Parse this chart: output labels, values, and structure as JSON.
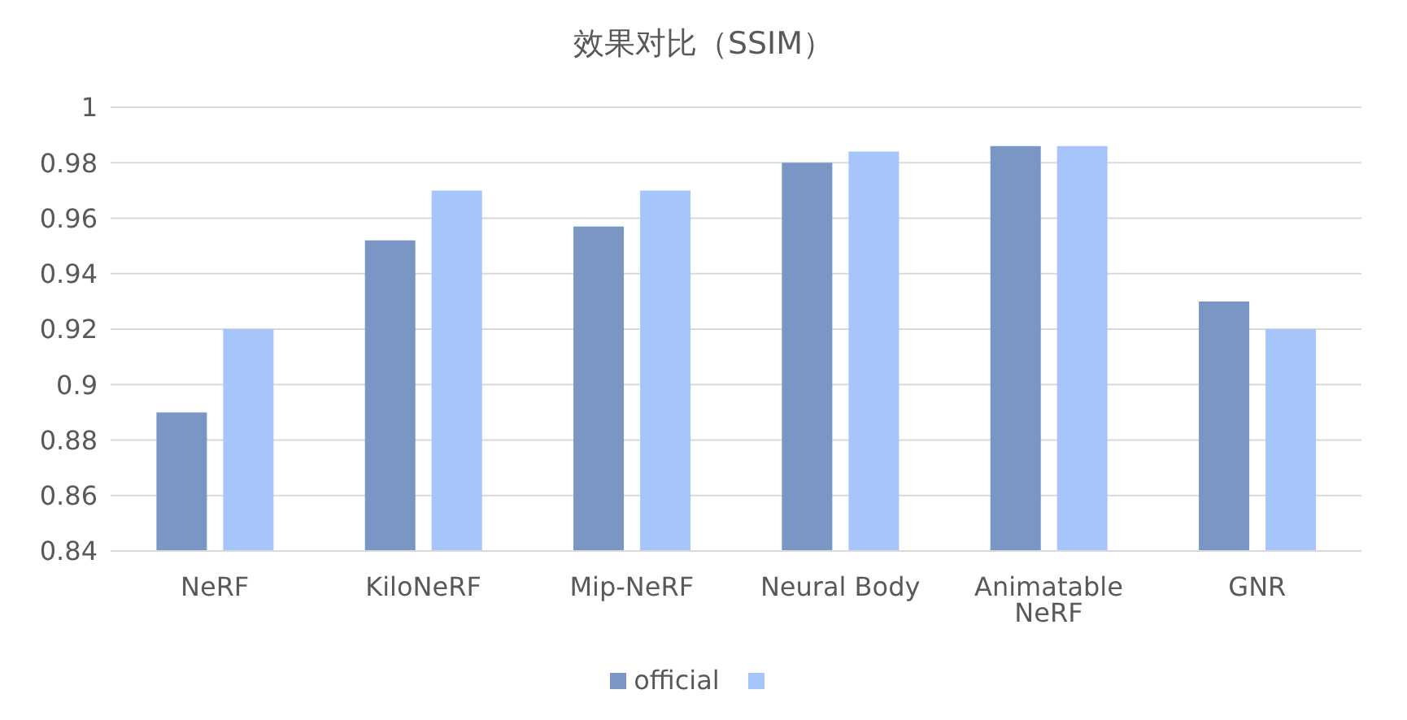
{
  "chart_data": {
    "type": "bar",
    "title": "效果对比（SSIM）",
    "categories": [
      "NeRF",
      "KiloNeRF",
      "Mip-NeRF",
      "Neural Body",
      "Animatable NeRF",
      "GNR"
    ],
    "series": [
      {
        "name": "official",
        "color": "#7a96c4",
        "values": [
          0.89,
          0.952,
          0.957,
          0.98,
          0.986,
          0.93
        ]
      },
      {
        "color": "#a6c6fb",
        "values": [
          0.92,
          0.97,
          0.97,
          0.984,
          0.986,
          0.92
        ]
      }
    ],
    "ylim": [
      0.84,
      1
    ],
    "yticks": [
      0.84,
      0.86,
      0.88,
      0.9,
      0.92,
      0.94,
      0.96,
      0.98,
      1
    ],
    "grid": "y",
    "legend": "bottom"
  }
}
